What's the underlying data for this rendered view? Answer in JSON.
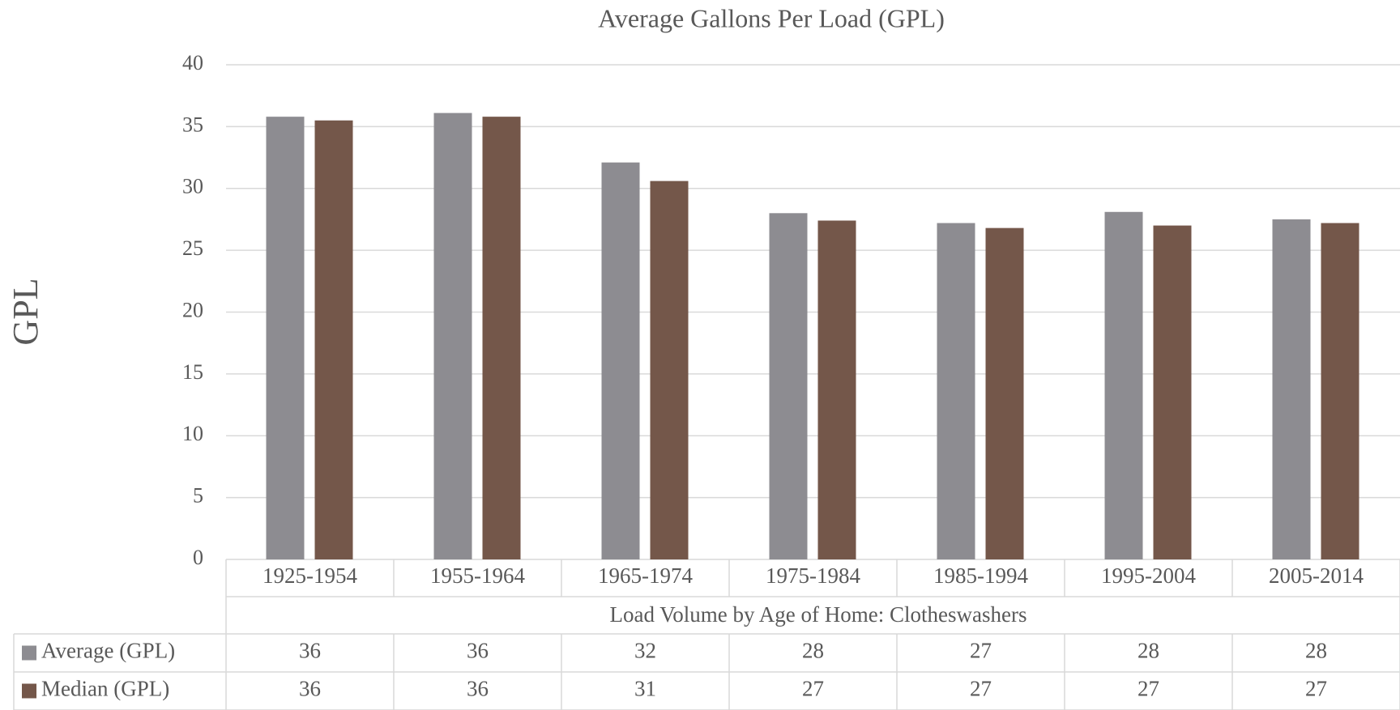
{
  "chart_data": {
    "type": "bar",
    "title": "Average Gallons Per Load (GPL)",
    "y_label": "GPL",
    "x_label": "Load Volume by Age of Home: Clotheswashers",
    "categories": [
      "1925-1954",
      "1955-1964",
      "1965-1974",
      "1975-1984",
      "1985-1994",
      "1995-2004",
      "2005-2014"
    ],
    "series": [
      {
        "name": "Average (GPL)",
        "color": "#8d8c91",
        "values": [
          35.8,
          36.1,
          32.1,
          28.0,
          27.2,
          28.1,
          27.5
        ],
        "value_labels": [
          "36",
          "36",
          "32",
          "28",
          "27",
          "28",
          "28"
        ]
      },
      {
        "name": "Median (GPL)",
        "color": "#74574a",
        "values": [
          35.5,
          35.8,
          30.6,
          27.4,
          26.8,
          27.0,
          27.2
        ],
        "value_labels": [
          "36",
          "36",
          "31",
          "27",
          "27",
          "27",
          "27"
        ]
      }
    ],
    "ylim": [
      0,
      40
    ],
    "yticks": [
      0,
      5,
      10,
      15,
      20,
      25,
      30,
      35,
      40
    ],
    "grid": true
  }
}
